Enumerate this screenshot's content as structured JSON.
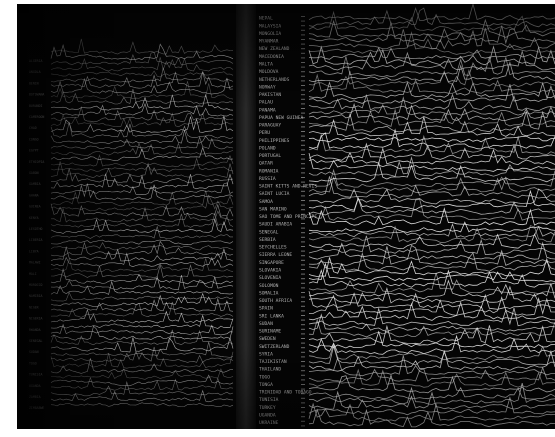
{
  "photo": {
    "subject": "perspective view of two wall panels covered in stacked line-graph traces",
    "background_color": "#050505",
    "trace_color": "#e6e6e6",
    "label_color": "#d9d9d9",
    "divider_color": "#1a1a1a"
  },
  "left_panel": {
    "row_labels": [
      "ALGERIA",
      "ANGOLA",
      "BENIN",
      "BOTSWANA",
      "BURUNDI",
      "CAMEROON",
      "CHAD",
      "CONGO",
      "EGYPT",
      "ETHIOPIA",
      "GABON",
      "GAMBIA",
      "GHANA",
      "GUINEA",
      "KENYA",
      "LESOTHO",
      "LIBERIA",
      "LIBYA",
      "MALAWI",
      "MALI",
      "MOROCCO",
      "NAMIBIA",
      "NIGER",
      "NIGERIA",
      "RWANDA",
      "SENEGAL",
      "SUDAN",
      "TOGO",
      "TUNISIA",
      "UGANDA",
      "ZAMBIA",
      "ZIMBABWE"
    ]
  },
  "right_panel": {
    "row_labels": [
      "NEPAL",
      "MALAYSIA",
      "MONGOLIA",
      "MYANMAR",
      "NEW ZEALAND",
      "MACEDONIA",
      "MALTA",
      "MOLDOVA",
      "NETHERLANDS",
      "NORWAY",
      "PAKISTAN",
      "PALAU",
      "PANAMA",
      "PAPUA NEW GUINEA",
      "PARAGUAY",
      "PERU",
      "PHILIPPINES",
      "POLAND",
      "PORTUGAL",
      "QATAR",
      "ROMANIA",
      "RUSSIA",
      "SAINT KITTS AND NEVIS",
      "SAINT LUCIA",
      "SAMOA",
      "SAN MARINO",
      "SAO TOME AND PRINCIPE",
      "SAUDI ARABIA",
      "SENEGAL",
      "SERBIA",
      "SEYCHELLES",
      "SIERRA LEONE",
      "SINGAPORE",
      "SLOVAKIA",
      "SLOVENIA",
      "SOLOMON",
      "SOMALIA",
      "SOUTH AFRICA",
      "SPAIN",
      "SRI LANKA",
      "SUDAN",
      "SURINAME",
      "SWEDEN",
      "SWITZERLAND",
      "SYRIA",
      "TAJIKISTAN",
      "THAILAND",
      "TOGO",
      "TONGA",
      "TRINIDAD AND TOBAGO",
      "TUNISIA",
      "TURKEY",
      "UGANDA",
      "UKRAINE"
    ]
  }
}
